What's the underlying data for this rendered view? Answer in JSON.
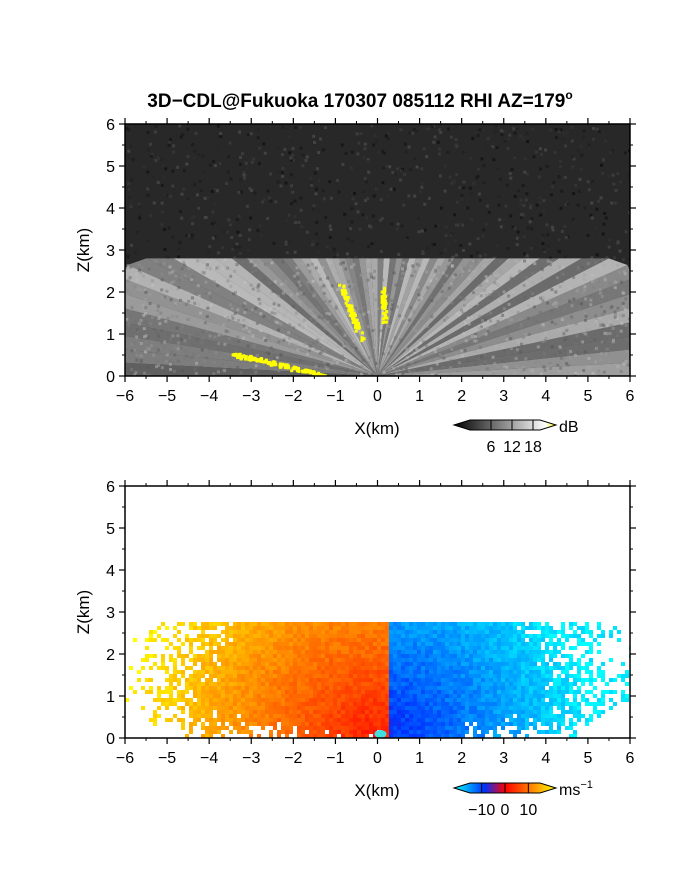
{
  "chart_data": [
    {
      "type": "heatmap",
      "title": "3D−CDL@Fukuoka 170307 085112 RHI AZ=179",
      "title_superscript": "o",
      "xlabel": "X(km)",
      "ylabel": "Z(km)",
      "xlim": [
        -6,
        6
      ],
      "ylim": [
        0,
        6
      ],
      "x_ticks": [
        "−6",
        "−5",
        "−4",
        "−3",
        "−2",
        "−1",
        "0",
        "1",
        "2",
        "3",
        "4",
        "5",
        "6"
      ],
      "y_ticks": [
        "0",
        "1",
        "2",
        "3",
        "4",
        "5",
        "6"
      ],
      "echo_top_km": 2.8,
      "colormap": "grayscale (saturated values in yellow)",
      "colorbar": {
        "unit": "dB",
        "ticks": [
          "6",
          "12",
          "18"
        ],
        "tick_values": [
          6,
          12,
          18
        ],
        "range": [
          0,
          20
        ]
      },
      "saturated_color": "#ffff00"
    },
    {
      "type": "heatmap",
      "xlabel": "X(km)",
      "ylabel": "Z(km)",
      "xlim": [
        -6,
        6
      ],
      "ylim": [
        0,
        6
      ],
      "x_ticks": [
        "−6",
        "−5",
        "−4",
        "−3",
        "−2",
        "−1",
        "0",
        "1",
        "2",
        "3",
        "4",
        "5",
        "6"
      ],
      "y_ticks": [
        "0",
        "1",
        "2",
        "3",
        "4",
        "5",
        "6"
      ],
      "echo_top_km": 2.8,
      "velocity_sign": "positive (warm colors) for X < 0.2 km, negative (blue) for X > 0.2 km",
      "colormap_stops": [
        "#00ffff",
        "#0030ff",
        "#ff0000",
        "#ff8000",
        "#ffff00"
      ],
      "colorbar": {
        "unit": "ms",
        "unit_superscript": "−1",
        "ticks": [
          "−10",
          "0",
          "10"
        ],
        "tick_values": [
          -10,
          0,
          10
        ],
        "range": [
          -15,
          15
        ]
      }
    }
  ]
}
